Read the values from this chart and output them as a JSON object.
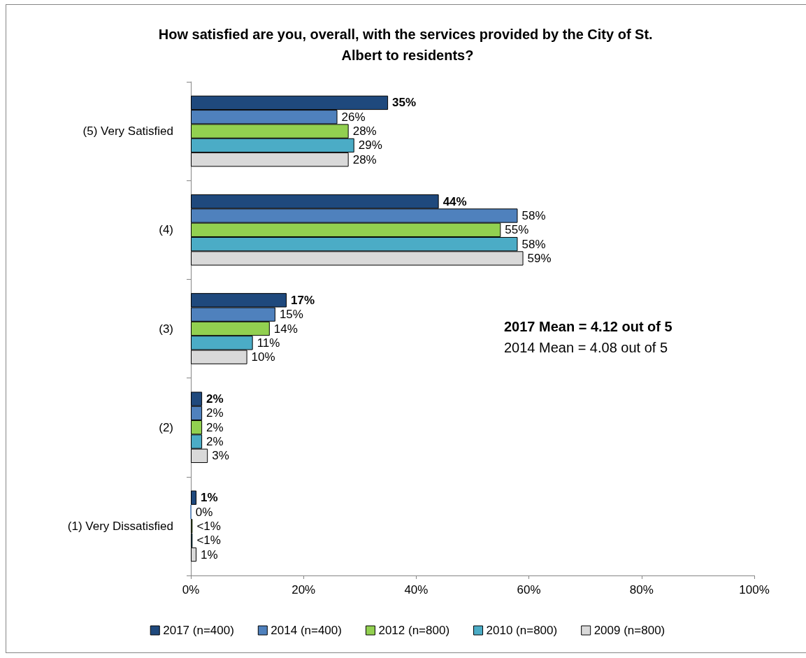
{
  "chart_data": {
    "type": "bar",
    "orientation": "horizontal",
    "title": "How satisfied are you, overall, with the services provided by the City of St. Albert to residents?",
    "categories": [
      "(5) Very Satisfied",
      "(4)",
      "(3)",
      "(2)",
      "(1) Very Dissatisfied"
    ],
    "series": [
      {
        "name": "2017 (n=400)",
        "color": "#1f497d",
        "values": [
          35,
          44,
          17,
          2,
          1
        ],
        "value_labels": [
          "35%",
          "44%",
          "17%",
          "2%",
          "1%"
        ]
      },
      {
        "name": "2014 (n=400)",
        "color": "#4f81bd",
        "values": [
          26,
          58,
          15,
          2,
          0
        ],
        "value_labels": [
          "26%",
          "58%",
          "15%",
          "2%",
          "0%"
        ]
      },
      {
        "name": "2012 (n=800)",
        "color": "#92d050",
        "values": [
          28,
          55,
          14,
          2,
          0.3
        ],
        "value_labels": [
          "28%",
          "55%",
          "14%",
          "2%",
          "<1%"
        ]
      },
      {
        "name": "2010 (n=800)",
        "color": "#4bacc6",
        "values": [
          29,
          58,
          11,
          2,
          0.3
        ],
        "value_labels": [
          "29%",
          "58%",
          "11%",
          "2%",
          "<1%"
        ]
      },
      {
        "name": "2009 (n=800)",
        "color": "#d9d9d9",
        "values": [
          28,
          59,
          10,
          3,
          1
        ],
        "value_labels": [
          "28%",
          "59%",
          "10%",
          "3%",
          "1%"
        ]
      }
    ],
    "xlim": [
      0,
      100
    ],
    "xticks": [
      {
        "value": 0,
        "label": "0%"
      },
      {
        "value": 20,
        "label": "20%"
      },
      {
        "value": 40,
        "label": "40%"
      },
      {
        "value": 60,
        "label": "60%"
      },
      {
        "value": 80,
        "label": "80%"
      },
      {
        "value": 100,
        "label": "100%"
      }
    ],
    "grid": false,
    "legend": "bottom",
    "annotations": [
      "2017 Mean = 4.12 out of 5",
      "2014 Mean = 4.08 out of 5"
    ]
  }
}
